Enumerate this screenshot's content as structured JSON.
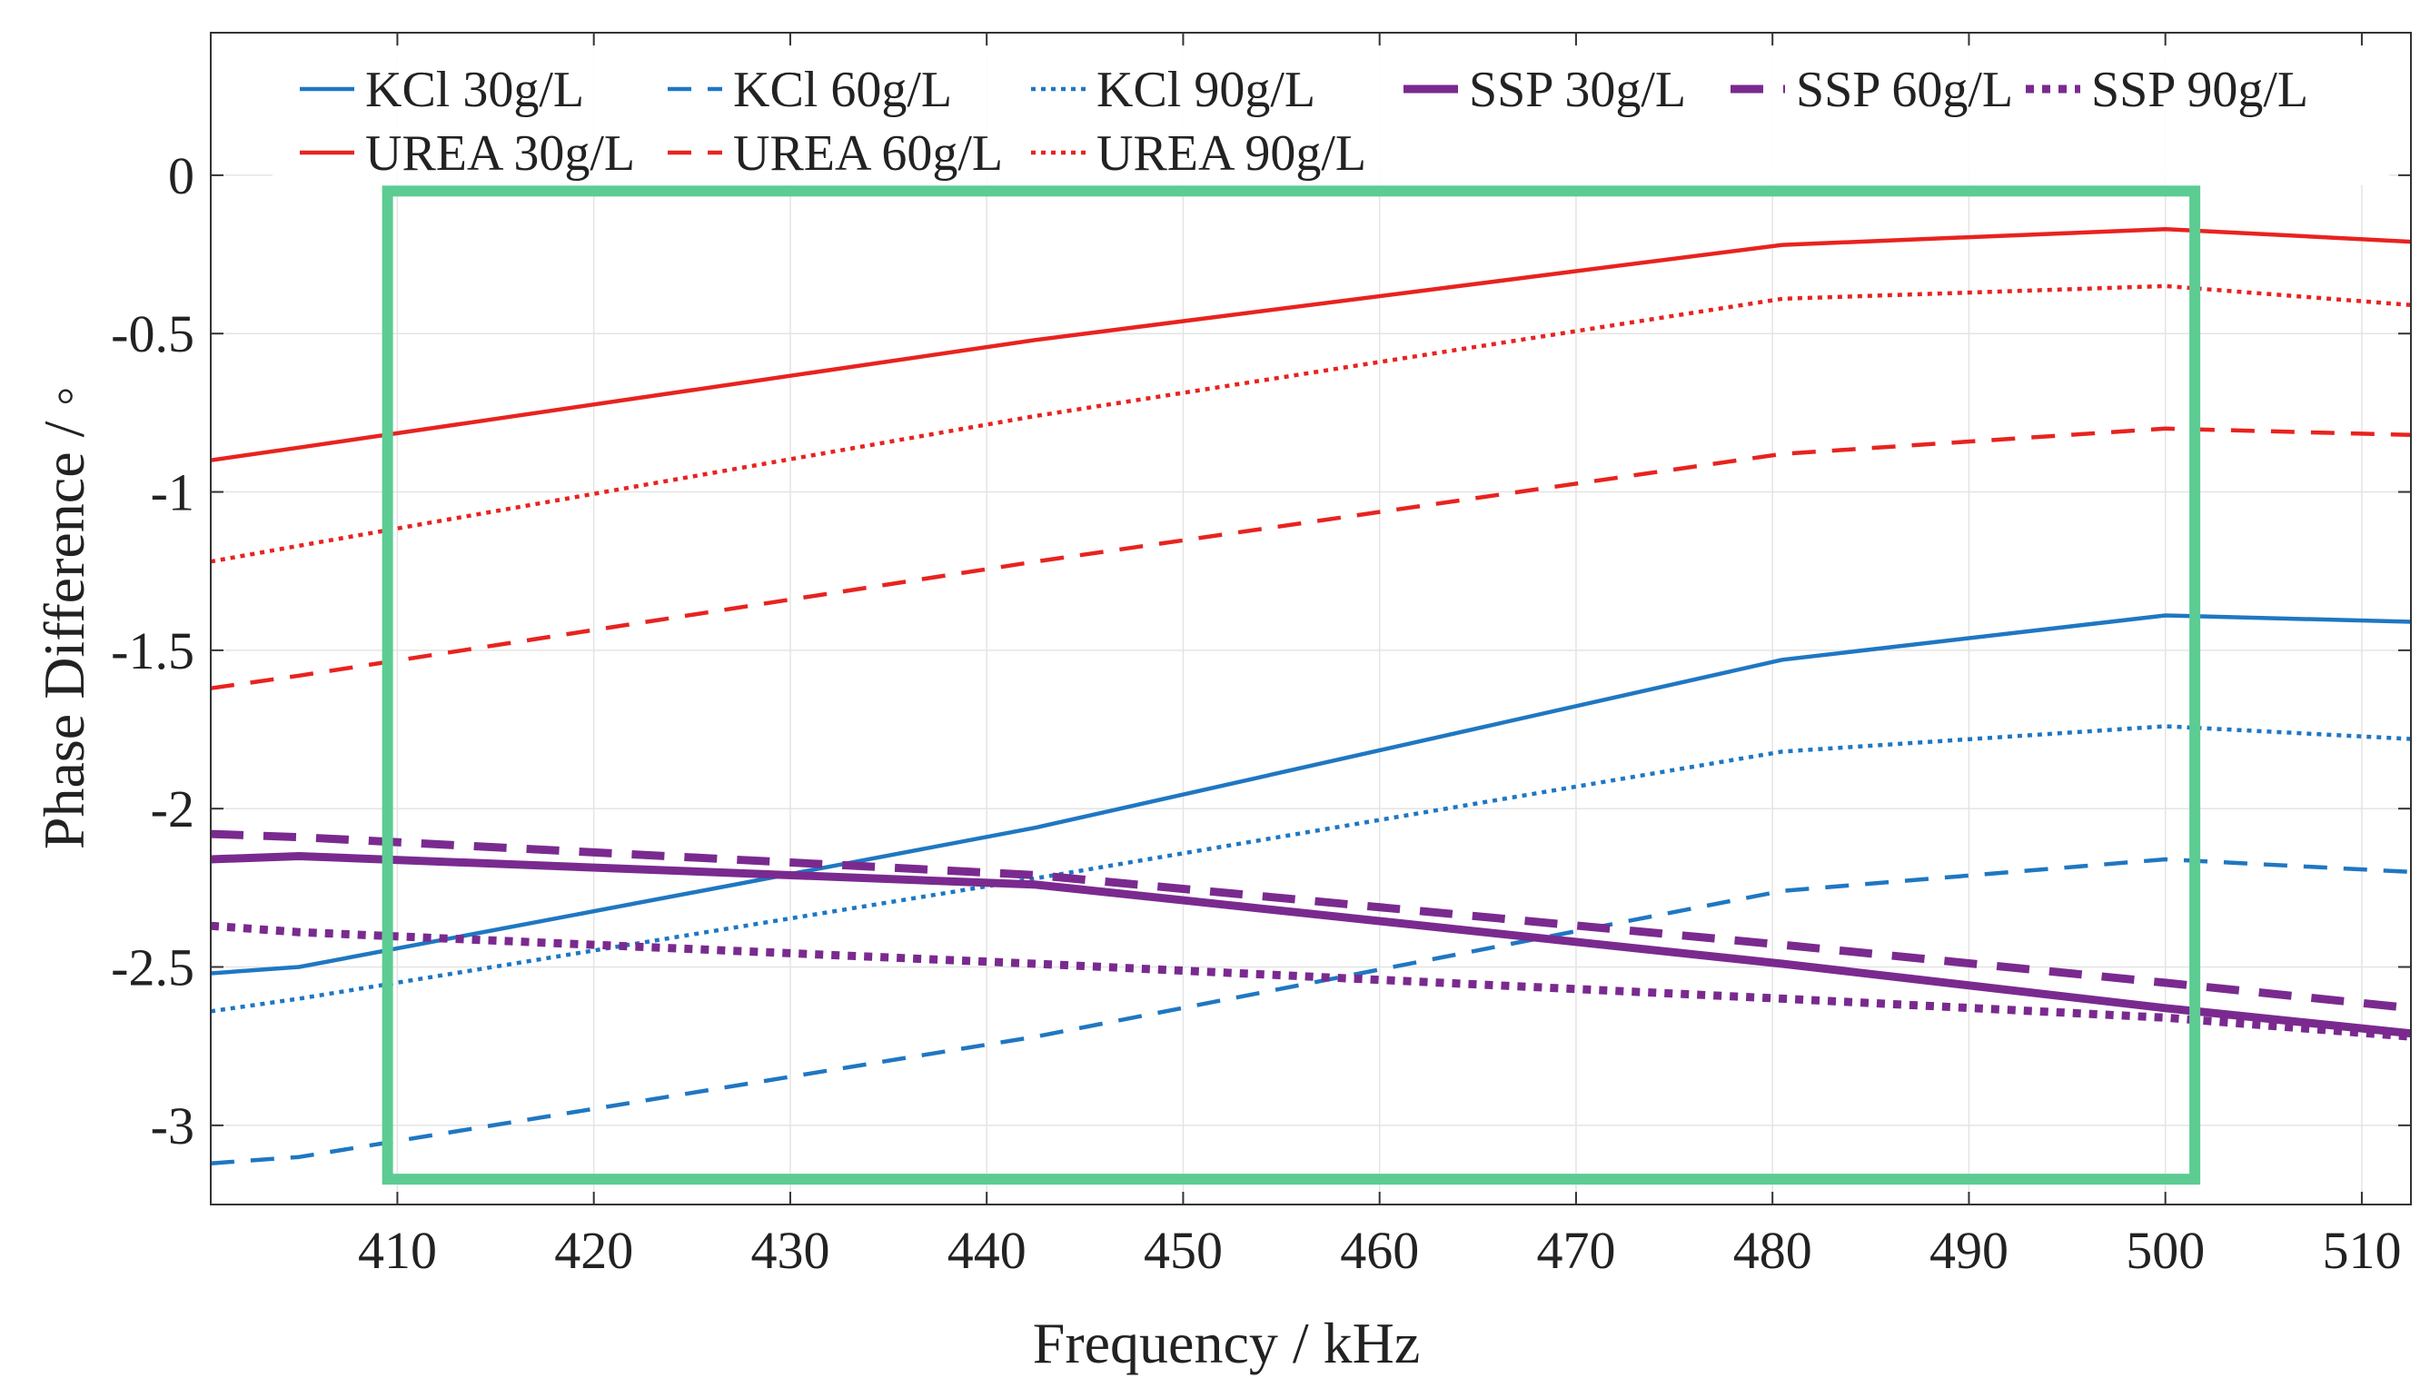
{
  "chart_data": {
    "type": "line",
    "title": "",
    "xlabel": "Frequency / kHz",
    "ylabel": "Phase Difference / ◦",
    "xlim": [
      400.5,
      512.5
    ],
    "ylim": [
      -3.25,
      0.45
    ],
    "xticks": [
      410,
      420,
      430,
      440,
      450,
      460,
      470,
      480,
      490,
      500,
      510
    ],
    "yticks": [
      0,
      -0.5,
      -1,
      -1.5,
      -2,
      -2.5,
      -3
    ],
    "xtick_labels": [
      "410",
      "420",
      "430",
      "440",
      "450",
      "460",
      "470",
      "480",
      "490",
      "500",
      "510"
    ],
    "ytick_labels": [
      "0",
      "-0.5",
      "-1",
      "-1.5",
      "-2",
      "-2.5",
      "-3"
    ],
    "grid": true,
    "legend_position": "top",
    "x": [
      400.5,
      405,
      442.5,
      480.5,
      500,
      512.5
    ],
    "series": [
      {
        "name": "KCl 30g/L",
        "color": "#1f77c2",
        "style": "solid",
        "width": "thin",
        "values": [
          -2.52,
          -2.5,
          -2.06,
          -1.53,
          -1.39,
          -1.41
        ]
      },
      {
        "name": "KCl 60g/L",
        "color": "#1f77c2",
        "style": "dash",
        "width": "thin",
        "values": [
          -3.12,
          -3.1,
          -2.72,
          -2.26,
          -2.16,
          -2.2
        ]
      },
      {
        "name": "KCl 90g/L",
        "color": "#1f77c2",
        "style": "dot",
        "width": "thin",
        "values": [
          -2.64,
          -2.6,
          -2.22,
          -1.82,
          -1.74,
          -1.78
        ]
      },
      {
        "name": "SSP 30g/L",
        "color": "#7a2a8f",
        "style": "solid",
        "width": "thick",
        "values": [
          -2.16,
          -2.15,
          -2.24,
          -2.49,
          -2.63,
          -2.71
        ]
      },
      {
        "name": "SSP 60g/L",
        "color": "#7a2a8f",
        "style": "dash",
        "width": "thick",
        "values": [
          -2.08,
          -2.09,
          -2.21,
          -2.43,
          -2.55,
          -2.63
        ]
      },
      {
        "name": "SSP 90g/L",
        "color": "#7a2a8f",
        "style": "dot",
        "width": "thick",
        "values": [
          -2.37,
          -2.39,
          -2.49,
          -2.6,
          -2.66,
          -2.72
        ]
      },
      {
        "name": "UREA 30g/L",
        "color": "#e8231f",
        "style": "solid",
        "width": "thin",
        "values": [
          -0.9,
          -0.86,
          -0.52,
          -0.22,
          -0.17,
          -0.21
        ]
      },
      {
        "name": "UREA 60g/L",
        "color": "#e8231f",
        "style": "dash",
        "width": "thin",
        "values": [
          -1.62,
          -1.58,
          -1.22,
          -0.88,
          -0.8,
          -0.82
        ]
      },
      {
        "name": "UREA 90g/L",
        "color": "#e8231f",
        "style": "dot",
        "width": "thin",
        "values": [
          -1.22,
          -1.17,
          -0.76,
          -0.39,
          -0.35,
          -0.41
        ]
      }
    ],
    "annotations": [
      {
        "type": "rectangle",
        "color": "#5ccc92",
        "x_range": [
          409.5,
          501.5
        ],
        "y_range": [
          -3.17,
          -0.05
        ]
      }
    ]
  }
}
